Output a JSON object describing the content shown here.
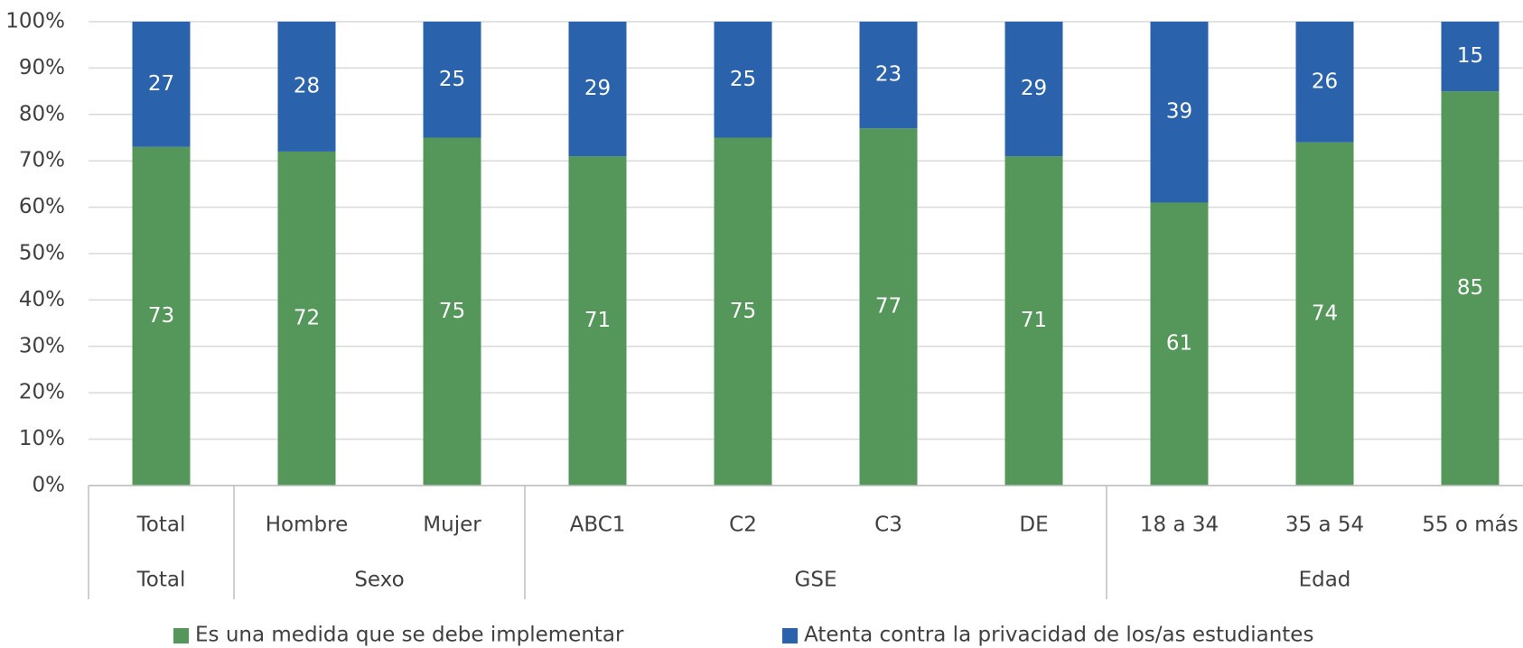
{
  "chart_data": {
    "type": "stacked_bar",
    "categories": [
      "Total",
      "Hombre",
      "Mujer",
      "ABC1",
      "C2",
      "C3",
      "DE",
      "18 a 34",
      "35 a 54",
      "55 o más"
    ],
    "groups": [
      {
        "name": "Total",
        "span": 1
      },
      {
        "name": "Sexo",
        "span": 2
      },
      {
        "name": "GSE",
        "span": 4
      },
      {
        "name": "Edad",
        "span": 3
      }
    ],
    "series": [
      {
        "name": "Es una medida que se debe implementar",
        "color": "#55965a",
        "values": [
          73,
          72,
          75,
          71,
          75,
          77,
          71,
          61,
          74,
          85
        ]
      },
      {
        "name": "Atenta contra la privacidad de los/as estudiantes",
        "color": "#2a62ac",
        "values": [
          27,
          28,
          25,
          29,
          25,
          23,
          29,
          39,
          26,
          15
        ]
      }
    ],
    "ylim": [
      0,
      100
    ],
    "yticks": [
      {
        "value": 0,
        "label": "0%"
      },
      {
        "value": 10,
        "label": "10%"
      },
      {
        "value": 20,
        "label": "20%"
      },
      {
        "value": 30,
        "label": "30%"
      },
      {
        "value": 40,
        "label": "40%"
      },
      {
        "value": 50,
        "label": "50%"
      },
      {
        "value": 60,
        "label": "60%"
      },
      {
        "value": 70,
        "label": "70%"
      },
      {
        "value": 80,
        "label": "80%"
      },
      {
        "value": 90,
        "label": "90%"
      },
      {
        "value": 100,
        "label": "100%"
      }
    ],
    "grid": true,
    "legend": "bottom"
  }
}
